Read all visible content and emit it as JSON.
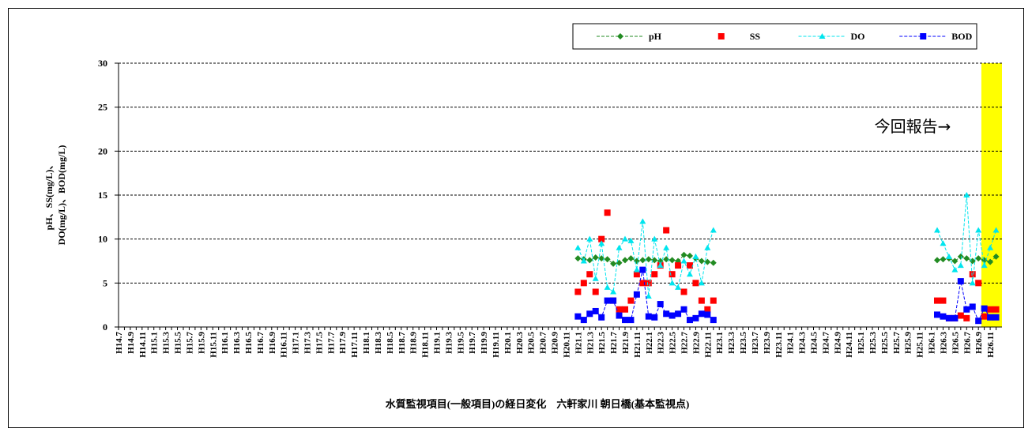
{
  "chart_data": {
    "type": "line",
    "title": "水質監視項目(一般項目)の経日変化　六軒家川 朝日橋(基本監視点)",
    "ylabel": [
      "pH、SS(mg/L)、",
      "DO(mg/L)、BOD(mg/L)"
    ],
    "annotation": "今回報告→",
    "categories": [
      "H14.7",
      null,
      "H14.9",
      null,
      "H14.11",
      null,
      "H15.1",
      null,
      "H15.3",
      null,
      "H15.5",
      null,
      "H15.7",
      null,
      "H15.9",
      null,
      "H15.11",
      null,
      "H16.1",
      null,
      "H16.3",
      null,
      "H16.5",
      null,
      "H16.7",
      null,
      "H16.9",
      null,
      "H16.11",
      null,
      "H17.1",
      null,
      "H17.3",
      null,
      "H17.5",
      null,
      "H17.7",
      null,
      "H17.9",
      null,
      "H17.11",
      null,
      "H18.1",
      null,
      "H18.3",
      null,
      "H18.5",
      null,
      "H18.7",
      null,
      "H18.9",
      null,
      "H18.11",
      null,
      "H19.1",
      null,
      "H19.3",
      null,
      "H19.5",
      null,
      "H19.7",
      null,
      "H19.9",
      null,
      "H19.11",
      null,
      "H20.1",
      null,
      "H20.3",
      null,
      "H20.5",
      null,
      "H20.7",
      null,
      "H20.9",
      null,
      "H20.11",
      null,
      "H21.1",
      null,
      "H21.3",
      null,
      "H21.5",
      null,
      "H21.7",
      null,
      "H21.9",
      null,
      "H21.11",
      null,
      "H22.1",
      null,
      "H22.3",
      null,
      "H22.5",
      null,
      "H22.7",
      null,
      "H22.9",
      null,
      "H22.11",
      null,
      "H23.1",
      null,
      "H23.3",
      null,
      "H23.5",
      null,
      "H23.7",
      null,
      "H23.9",
      null,
      "H23.11",
      null,
      "H24.1",
      null,
      "H24.3",
      null,
      "H24.5",
      null,
      "H24.7",
      null,
      "H24.9",
      null,
      "H24.11",
      null,
      "H25.1",
      null,
      "H25.3",
      null,
      "H25.5",
      null,
      "H25.7",
      null,
      "H25.9",
      null,
      "H25.11",
      null,
      "H26.1",
      null,
      "H26.3",
      null,
      "H26.5",
      null,
      "H26.7",
      null,
      "H26.9",
      null,
      "H26.11",
      null
    ],
    "series": [
      {
        "name": "pH",
        "color": "#228b22",
        "marker": "diamond",
        "line": true,
        "values": [
          null,
          null,
          null,
          null,
          null,
          null,
          null,
          null,
          null,
          null,
          null,
          null,
          null,
          null,
          null,
          null,
          null,
          null,
          null,
          null,
          null,
          null,
          null,
          null,
          null,
          null,
          null,
          null,
          null,
          null,
          null,
          null,
          null,
          null,
          null,
          null,
          null,
          null,
          null,
          null,
          null,
          null,
          null,
          null,
          null,
          null,
          null,
          null,
          null,
          null,
          null,
          null,
          null,
          null,
          null,
          null,
          null,
          null,
          null,
          null,
          null,
          null,
          null,
          null,
          null,
          null,
          null,
          null,
          null,
          null,
          null,
          null,
          null,
          null,
          null,
          null,
          null,
          null,
          7.8,
          7.7,
          7.6,
          7.9,
          7.8,
          7.7,
          7.2,
          7.3,
          7.6,
          7.8,
          7.5,
          7.6,
          7.7,
          7.6,
          7.5,
          7.7,
          7.6,
          7.5,
          8.2,
          8.1,
          7.8,
          7.5,
          7.4,
          7.3,
          null,
          null,
          null,
          null,
          null,
          null,
          null,
          null,
          null,
          null,
          null,
          null,
          null,
          null,
          null,
          null,
          null,
          null,
          null,
          null,
          null,
          null,
          null,
          null,
          null,
          null,
          null,
          null,
          null,
          null,
          null,
          null,
          null,
          null,
          null,
          null,
          null,
          7.6,
          7.7,
          7.8,
          7.5,
          8,
          7.8,
          7.5,
          7.8,
          7.6,
          7.4,
          8
        ]
      },
      {
        "name": "SS",
        "color": "#ff0000",
        "marker": "square",
        "line": false,
        "values": [
          null,
          null,
          null,
          null,
          null,
          null,
          null,
          null,
          null,
          null,
          null,
          null,
          null,
          null,
          null,
          null,
          null,
          null,
          null,
          null,
          null,
          null,
          null,
          null,
          null,
          null,
          null,
          null,
          null,
          null,
          null,
          null,
          null,
          null,
          null,
          null,
          null,
          null,
          null,
          null,
          null,
          null,
          null,
          null,
          null,
          null,
          null,
          null,
          null,
          null,
          null,
          null,
          null,
          null,
          null,
          null,
          null,
          null,
          null,
          null,
          null,
          null,
          null,
          null,
          null,
          null,
          null,
          null,
          null,
          null,
          null,
          null,
          null,
          null,
          null,
          null,
          null,
          null,
          4,
          5,
          6,
          4,
          10,
          13,
          3,
          2,
          2,
          3,
          6,
          5,
          5,
          6,
          7,
          11,
          6,
          7,
          4,
          7,
          5,
          3,
          2,
          3,
          null,
          null,
          null,
          null,
          null,
          null,
          null,
          null,
          null,
          null,
          null,
          null,
          null,
          null,
          null,
          null,
          null,
          null,
          null,
          null,
          null,
          null,
          null,
          null,
          null,
          null,
          null,
          null,
          null,
          null,
          null,
          null,
          null,
          null,
          null,
          null,
          null,
          3,
          3,
          1,
          1,
          1.3,
          1,
          6,
          5,
          1.2,
          2,
          2
        ]
      },
      {
        "name": "DO",
        "color": "#00e5ee",
        "marker": "triangle",
        "line": true,
        "values": [
          null,
          null,
          null,
          null,
          null,
          null,
          null,
          null,
          null,
          null,
          null,
          null,
          null,
          null,
          null,
          null,
          null,
          null,
          null,
          null,
          null,
          null,
          null,
          null,
          null,
          null,
          null,
          null,
          null,
          null,
          null,
          null,
          null,
          null,
          null,
          null,
          null,
          null,
          null,
          null,
          null,
          null,
          null,
          null,
          null,
          null,
          null,
          null,
          null,
          null,
          null,
          null,
          null,
          null,
          null,
          null,
          null,
          null,
          null,
          null,
          null,
          null,
          null,
          null,
          null,
          null,
          null,
          null,
          null,
          null,
          null,
          null,
          null,
          null,
          null,
          null,
          null,
          null,
          9,
          7.5,
          10,
          5.5,
          9.5,
          4.5,
          4,
          9,
          10,
          9.8,
          6.5,
          12,
          3.5,
          10,
          7,
          9,
          5,
          4.5,
          7.5,
          6,
          8,
          5,
          9,
          11,
          null,
          null,
          null,
          null,
          null,
          null,
          null,
          null,
          null,
          null,
          null,
          null,
          null,
          null,
          null,
          null,
          null,
          null,
          null,
          null,
          null,
          null,
          null,
          null,
          null,
          null,
          null,
          null,
          null,
          null,
          null,
          null,
          null,
          null,
          null,
          null,
          null,
          11,
          9.5,
          8,
          6.5,
          7,
          15,
          5,
          11,
          7,
          9,
          11
        ]
      },
      {
        "name": "BOD",
        "color": "#0000ff",
        "marker": "square",
        "line": true,
        "values": [
          null,
          null,
          null,
          null,
          null,
          null,
          null,
          null,
          null,
          null,
          null,
          null,
          null,
          null,
          null,
          null,
          null,
          null,
          null,
          null,
          null,
          null,
          null,
          null,
          null,
          null,
          null,
          null,
          null,
          null,
          null,
          null,
          null,
          null,
          null,
          null,
          null,
          null,
          null,
          null,
          null,
          null,
          null,
          null,
          null,
          null,
          null,
          null,
          null,
          null,
          null,
          null,
          null,
          null,
          null,
          null,
          null,
          null,
          null,
          null,
          null,
          null,
          null,
          null,
          null,
          null,
          null,
          null,
          null,
          null,
          null,
          null,
          null,
          null,
          null,
          null,
          null,
          null,
          1.2,
          0.8,
          1.5,
          1.8,
          1.1,
          3,
          3,
          1.3,
          0.8,
          0.8,
          3.7,
          6.5,
          1.2,
          1.1,
          2.6,
          1.5,
          1.3,
          1.5,
          2,
          0.8,
          1,
          1.5,
          1.4,
          0.8,
          null,
          null,
          null,
          null,
          null,
          null,
          null,
          null,
          null,
          null,
          null,
          null,
          null,
          null,
          null,
          null,
          null,
          null,
          null,
          null,
          null,
          null,
          null,
          null,
          null,
          null,
          null,
          null,
          null,
          null,
          null,
          null,
          null,
          null,
          null,
          null,
          null,
          1.4,
          1.2,
          1,
          1,
          5.2,
          2,
          2.3,
          0.7,
          2.1,
          1.1,
          1.1
        ]
      }
    ],
    "ylim": [
      0,
      30
    ],
    "yticks": [
      0,
      5,
      10,
      15,
      20,
      25,
      30
    ],
    "grid": true,
    "legend": "top-right"
  }
}
